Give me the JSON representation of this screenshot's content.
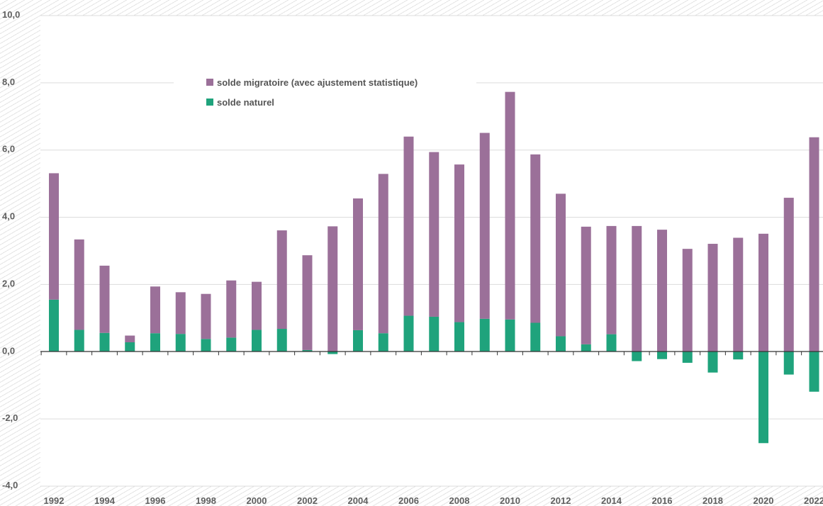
{
  "chart_data": {
    "type": "bar",
    "stacked": true,
    "title": "",
    "xlabel": "",
    "ylabel": "",
    "ylim": [
      -4,
      10
    ],
    "yticks": [
      "10,0",
      "8,0",
      "6,0",
      "4,0",
      "2,0",
      "0,0",
      "-2,0",
      "-4,0"
    ],
    "ytick_values": [
      10,
      8,
      6,
      4,
      2,
      0,
      -2,
      -4
    ],
    "xtick_labels": [
      "1992",
      "1994",
      "1996",
      "1998",
      "2000",
      "2002",
      "2004",
      "2006",
      "2008",
      "2010",
      "2012",
      "2014",
      "2016",
      "2018",
      "2020",
      "2022"
    ],
    "categories": [
      1992,
      1993,
      1994,
      1995,
      1996,
      1997,
      1998,
      1999,
      2000,
      2001,
      2002,
      2003,
      2004,
      2005,
      2006,
      2007,
      2008,
      2009,
      2010,
      2011,
      2012,
      2013,
      2014,
      2015,
      2016,
      2017,
      2018,
      2019,
      2020,
      2021,
      2022
    ],
    "grid": true,
    "legend_position": "top-left",
    "series": [
      {
        "name": "solde naturel",
        "color": "#1fa37c",
        "values": [
          1.55,
          0.65,
          0.56,
          0.28,
          0.55,
          0.53,
          0.38,
          0.42,
          0.65,
          0.68,
          0.05,
          -0.07,
          0.64,
          0.55,
          1.07,
          1.04,
          0.88,
          0.98,
          0.96,
          0.86,
          0.46,
          0.22,
          0.52,
          -0.28,
          -0.22,
          -0.33,
          -0.62,
          -0.23,
          -2.72,
          -0.68,
          -1.19
        ]
      },
      {
        "name": "solde migratoire (avec ajustement statistique)",
        "color": "#9b7099",
        "values": [
          3.76,
          2.69,
          2.0,
          0.2,
          1.39,
          1.24,
          1.34,
          1.7,
          1.43,
          2.93,
          2.82,
          3.73,
          3.92,
          4.74,
          5.33,
          4.9,
          4.69,
          5.53,
          6.77,
          5.01,
          4.24,
          3.5,
          3.22,
          3.74,
          3.63,
          3.06,
          3.21,
          3.39,
          3.51,
          4.58,
          6.38
        ]
      }
    ]
  },
  "legend": {
    "items": [
      {
        "label": "solde migratoire (avec ajustement statistique)",
        "color": "#9b7099"
      },
      {
        "label": "solde naturel",
        "color": "#1fa37c"
      }
    ]
  }
}
